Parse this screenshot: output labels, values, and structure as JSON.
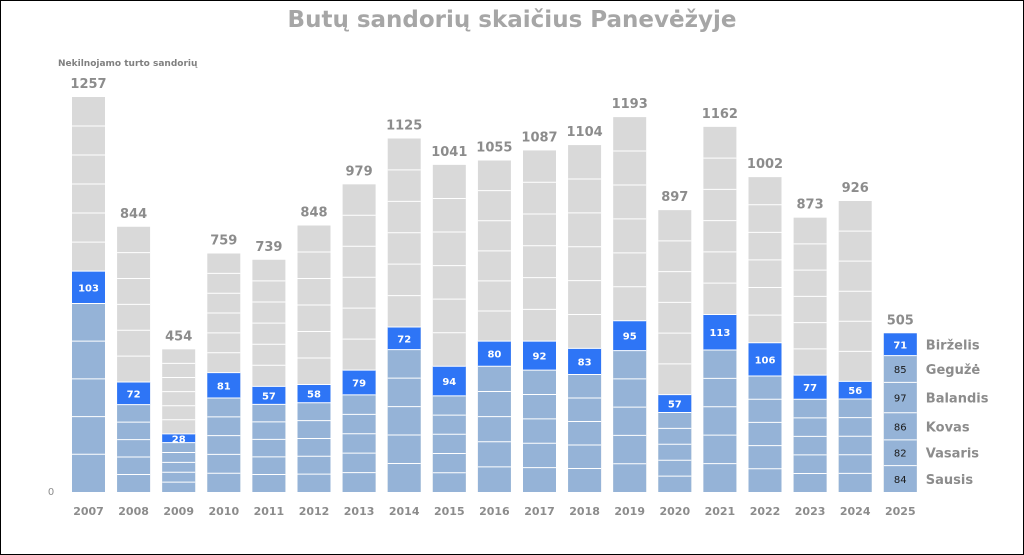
{
  "chart_data": {
    "type": "bar",
    "title": "Butų sandorių skaičius Panevėžyje",
    "ylabel": "Nekilnojamo turto sandorių",
    "y_zero_label": "0",
    "ylim": [
      0,
      1257
    ],
    "categories": [
      "2007",
      "2008",
      "2009",
      "2010",
      "2011",
      "2012",
      "2013",
      "2014",
      "2015",
      "2016",
      "2017",
      "2018",
      "2019",
      "2020",
      "2021",
      "2022",
      "2023",
      "2024",
      "2025"
    ],
    "totals": [
      1257,
      844,
      454,
      759,
      739,
      848,
      979,
      1125,
      1041,
      1055,
      1087,
      1104,
      1193,
      897,
      1162,
      1002,
      873,
      926,
      505
    ],
    "jan_to_june": [
      703,
      350,
      185,
      380,
      336,
      342,
      388,
      525,
      400,
      480,
      480,
      457,
      545,
      310,
      565,
      475,
      372,
      352,
      505
    ],
    "june": [
      103,
      72,
      28,
      81,
      57,
      58,
      79,
      72,
      94,
      80,
      92,
      83,
      95,
      57,
      113,
      106,
      77,
      56,
      71
    ],
    "months_2025": [
      {
        "name": "Sausis",
        "value": 84
      },
      {
        "name": "Vasaris",
        "value": 82
      },
      {
        "name": "Kovas",
        "value": 86
      },
      {
        "name": "Balandis",
        "value": 97
      },
      {
        "name": "Gegužė",
        "value": 85
      },
      {
        "name": "Birželis",
        "value": 71
      }
    ],
    "colors": {
      "jan_may": "#95b3d7",
      "june": "#2e75f6",
      "jul_dec": "#d9d9d9",
      "segment_line": "#ffffff"
    },
    "grid": false,
    "legend": "right"
  }
}
